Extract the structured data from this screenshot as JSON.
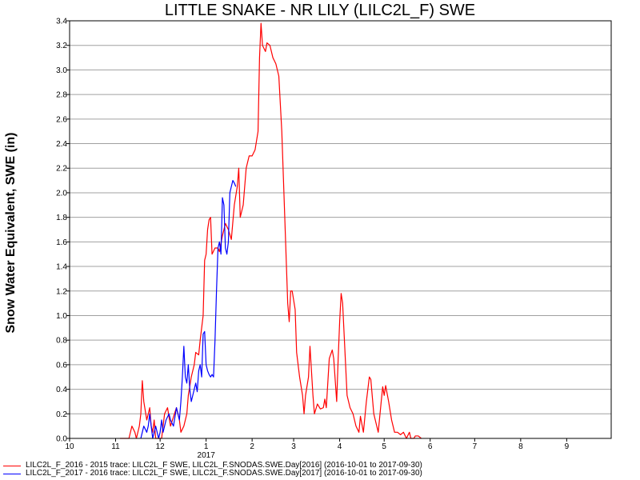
{
  "chart_data": {
    "type": "line",
    "title": "LITTLE SNAKE - NR LILY (LILC2L_F) SWE",
    "ylabel": "Snow Water Equivalent, SWE (in)",
    "xlabel": "",
    "x_ticks": [
      "10",
      "11",
      "12",
      "1",
      "2",
      "3",
      "4",
      "5",
      "6",
      "7",
      "8",
      "9"
    ],
    "x_year_label": "2017",
    "y_ticks": [
      "0.0",
      "0.2",
      "0.4",
      "0.6",
      "0.8",
      "1.0",
      "1.2",
      "1.4",
      "1.6",
      "1.8",
      "2.0",
      "2.2",
      "2.4",
      "2.6",
      "2.8",
      "3.0",
      "3.2",
      "3.4"
    ],
    "xlim": [
      "10/1",
      "10/1"
    ],
    "ylim": [
      0,
      3.4
    ],
    "grid": true,
    "legend_position": "bottom-left",
    "series": [
      {
        "name": "LILC2L_F_2016 - 2015 trace: LILC2L_F SWE, LILC2L_F.SNODAS.SWE.Day[2016] (2016-10-01 to 2017-09-30)",
        "color": "#ff0000",
        "points": [
          [
            "11/04",
            0.0
          ],
          [
            "11/10",
            0.0
          ],
          [
            "11/12",
            0.1
          ],
          [
            "11/14",
            0.05
          ],
          [
            "11/15",
            0.0
          ],
          [
            "11/17",
            0.1
          ],
          [
            "11/18",
            0.2
          ],
          [
            "11/19",
            0.47
          ],
          [
            "11/20",
            0.3
          ],
          [
            "11/22",
            0.15
          ],
          [
            "11/24",
            0.25
          ],
          [
            "11/25",
            0.1
          ],
          [
            "11/26",
            0.05
          ],
          [
            "11/27",
            0.15
          ],
          [
            "11/28",
            0.0
          ],
          [
            "12/02",
            0.0
          ],
          [
            "12/04",
            0.2
          ],
          [
            "12/06",
            0.25
          ],
          [
            "12/08",
            0.1
          ],
          [
            "12/12",
            0.25
          ],
          [
            "12/14",
            0.15
          ],
          [
            "12/15",
            0.05
          ],
          [
            "12/17",
            0.1
          ],
          [
            "12/19",
            0.2
          ],
          [
            "12/20",
            0.35
          ],
          [
            "12/22",
            0.5
          ],
          [
            "12/24",
            0.6
          ],
          [
            "12/25",
            0.7
          ],
          [
            "12/27",
            0.68
          ],
          [
            "12/28",
            0.8
          ],
          [
            "12/30",
            1.0
          ],
          [
            "12/31",
            1.45
          ],
          [
            "1/01",
            1.5
          ],
          [
            "1/02",
            1.7
          ],
          [
            "1/03",
            1.78
          ],
          [
            "1/04",
            1.8
          ],
          [
            "1/05",
            1.5
          ],
          [
            "1/07",
            1.55
          ],
          [
            "1/09",
            1.55
          ],
          [
            "1/10",
            1.52
          ],
          [
            "1/12",
            1.65
          ],
          [
            "1/14",
            1.75
          ],
          [
            "1/16",
            1.7
          ],
          [
            "1/18",
            1.62
          ],
          [
            "1/20",
            1.9
          ],
          [
            "1/22",
            2.05
          ],
          [
            "1/23",
            2.2
          ],
          [
            "1/24",
            1.8
          ],
          [
            "1/26",
            1.9
          ],
          [
            "1/28",
            2.2
          ],
          [
            "1/30",
            2.3
          ],
          [
            "2/01",
            2.3
          ],
          [
            "2/03",
            2.35
          ],
          [
            "2/05",
            2.5
          ],
          [
            "2/06",
            3.1
          ],
          [
            "2/07",
            3.38
          ],
          [
            "2/08",
            3.2
          ],
          [
            "2/10",
            3.15
          ],
          [
            "2/11",
            3.22
          ],
          [
            "2/13",
            3.2
          ],
          [
            "2/15",
            3.1
          ],
          [
            "2/17",
            3.05
          ],
          [
            "2/19",
            2.95
          ],
          [
            "2/21",
            2.5
          ],
          [
            "2/23",
            1.8
          ],
          [
            "2/25",
            1.1
          ],
          [
            "2/26",
            0.95
          ],
          [
            "2/27",
            1.2
          ],
          [
            "2/28",
            1.2
          ],
          [
            "3/02",
            1.05
          ],
          [
            "3/03",
            0.7
          ],
          [
            "3/05",
            0.5
          ],
          [
            "3/07",
            0.35
          ],
          [
            "3/08",
            0.2
          ],
          [
            "3/09",
            0.35
          ],
          [
            "3/11",
            0.5
          ],
          [
            "3/12",
            0.75
          ],
          [
            "3/14",
            0.35
          ],
          [
            "3/15",
            0.2
          ],
          [
            "3/17",
            0.28
          ],
          [
            "3/19",
            0.24
          ],
          [
            "3/21",
            0.25
          ],
          [
            "3/22",
            0.32
          ],
          [
            "3/23",
            0.25
          ],
          [
            "3/25",
            0.65
          ],
          [
            "3/27",
            0.72
          ],
          [
            "3/28",
            0.65
          ],
          [
            "3/30",
            0.3
          ],
          [
            "3/31",
            0.65
          ],
          [
            "4/01",
            0.95
          ],
          [
            "4/02",
            1.18
          ],
          [
            "4/03",
            1.1
          ],
          [
            "4/05",
            0.6
          ],
          [
            "4/06",
            0.35
          ],
          [
            "4/08",
            0.25
          ],
          [
            "4/10",
            0.2
          ],
          [
            "4/12",
            0.1
          ],
          [
            "4/14",
            0.05
          ],
          [
            "4/15",
            0.18
          ],
          [
            "4/17",
            0.05
          ],
          [
            "4/19",
            0.3
          ],
          [
            "4/21",
            0.5
          ],
          [
            "4/22",
            0.48
          ],
          [
            "4/24",
            0.2
          ],
          [
            "4/26",
            0.1
          ],
          [
            "4/27",
            0.05
          ],
          [
            "4/29",
            0.3
          ],
          [
            "4/30",
            0.42
          ],
          [
            "5/01",
            0.35
          ],
          [
            "5/02",
            0.43
          ],
          [
            "5/04",
            0.3
          ],
          [
            "5/06",
            0.15
          ],
          [
            "5/08",
            0.05
          ],
          [
            "5/10",
            0.05
          ],
          [
            "5/12",
            0.03
          ],
          [
            "5/14",
            0.05
          ],
          [
            "5/16",
            0.0
          ],
          [
            "5/18",
            0.05
          ],
          [
            "5/19",
            0.0
          ],
          [
            "5/20",
            0.0
          ],
          [
            "5/21",
            0.0
          ],
          [
            "5/22",
            0.02
          ],
          [
            "5/23",
            0.02
          ],
          [
            "5/24",
            0.02
          ],
          [
            "5/26",
            0.0
          ]
        ]
      },
      {
        "name": "LILC2L_F_2017 - 2016 trace: LILC2L_F SWE, LILC2L_F.SNODAS.SWE.Day[2017] (2016-10-01 to 2017-09-30)",
        "color": "#0000ff",
        "points": [
          [
            "11/18",
            0.0
          ],
          [
            "11/19",
            0.05
          ],
          [
            "11/20",
            0.1
          ],
          [
            "11/22",
            0.05
          ],
          [
            "11/23",
            0.1
          ],
          [
            "11/24",
            0.2
          ],
          [
            "11/26",
            0.0
          ],
          [
            "11/27",
            0.05
          ],
          [
            "11/28",
            0.1
          ],
          [
            "11/30",
            0.0
          ],
          [
            "12/01",
            0.05
          ],
          [
            "12/02",
            0.15
          ],
          [
            "12/03",
            0.05
          ],
          [
            "12/05",
            0.15
          ],
          [
            "12/07",
            0.2
          ],
          [
            "12/08",
            0.15
          ],
          [
            "12/10",
            0.1
          ],
          [
            "12/12",
            0.25
          ],
          [
            "12/14",
            0.15
          ],
          [
            "12/15",
            0.3
          ],
          [
            "12/16",
            0.5
          ],
          [
            "12/17",
            0.75
          ],
          [
            "12/18",
            0.5
          ],
          [
            "12/19",
            0.45
          ],
          [
            "12/20",
            0.6
          ],
          [
            "12/21",
            0.4
          ],
          [
            "12/22",
            0.3
          ],
          [
            "12/23",
            0.35
          ],
          [
            "12/24",
            0.4
          ],
          [
            "12/25",
            0.45
          ],
          [
            "12/26",
            0.38
          ],
          [
            "12/27",
            0.55
          ],
          [
            "12/28",
            0.6
          ],
          [
            "12/29",
            0.5
          ],
          [
            "12/30",
            0.85
          ],
          [
            "12/31",
            0.87
          ],
          [
            "1/01",
            0.6
          ],
          [
            "1/02",
            0.55
          ],
          [
            "1/03",
            0.52
          ],
          [
            "1/04",
            0.5
          ],
          [
            "1/05",
            0.52
          ],
          [
            "1/06",
            0.5
          ],
          [
            "1/07",
            0.8
          ],
          [
            "1/08",
            1.2
          ],
          [
            "1/09",
            1.55
          ],
          [
            "1/10",
            1.6
          ],
          [
            "1/11",
            1.5
          ],
          [
            "1/12",
            1.96
          ],
          [
            "1/13",
            1.9
          ],
          [
            "1/14",
            1.55
          ],
          [
            "1/15",
            1.5
          ],
          [
            "1/16",
            1.6
          ],
          [
            "1/17",
            2.0
          ],
          [
            "1/18",
            2.05
          ],
          [
            "1/19",
            2.1
          ],
          [
            "1/20",
            2.08
          ],
          [
            "1/21",
            2.05
          ]
        ]
      }
    ]
  }
}
